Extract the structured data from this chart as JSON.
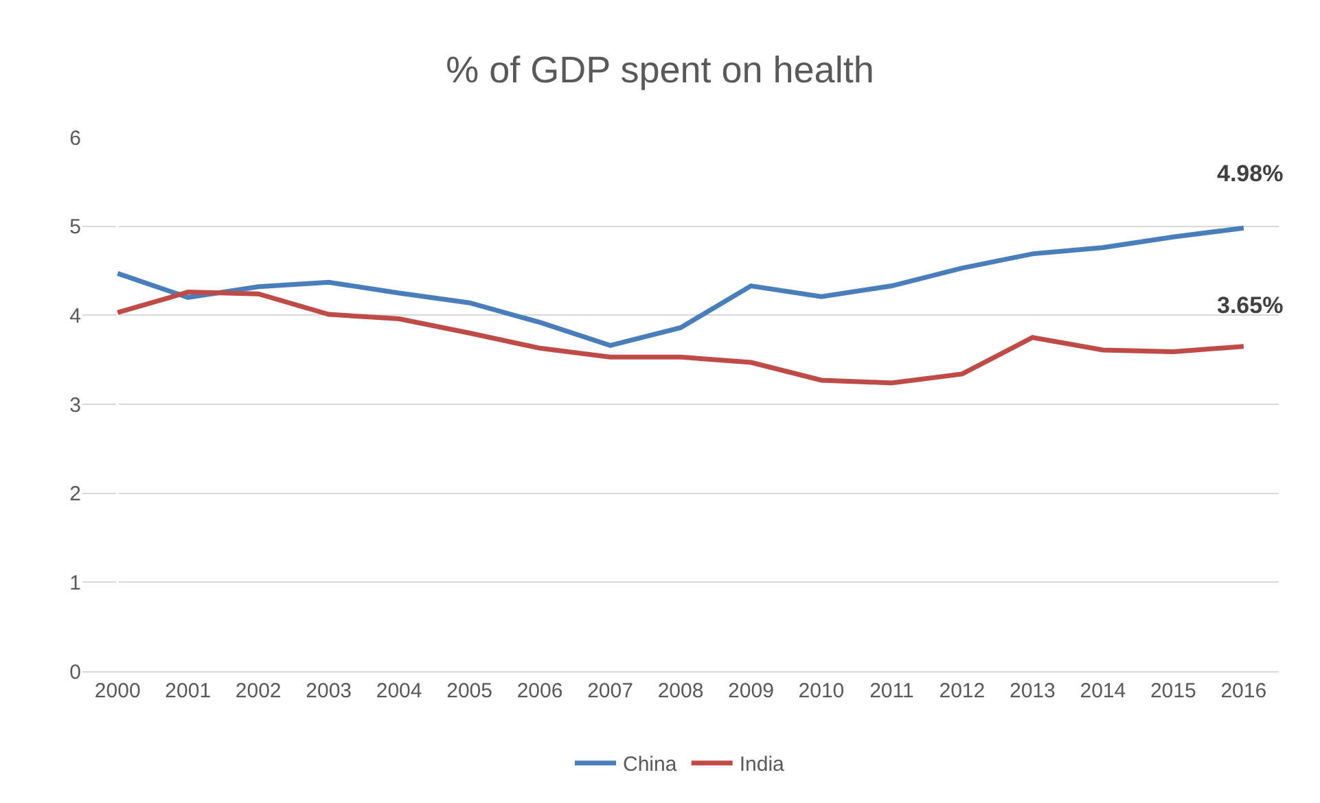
{
  "chart_data": {
    "type": "line",
    "title": "% of GDP spent on health",
    "categories": [
      "2000",
      "2001",
      "2002",
      "2003",
      "2004",
      "2005",
      "2006",
      "2007",
      "2008",
      "2009",
      "2010",
      "2011",
      "2012",
      "2013",
      "2014",
      "2015",
      "2016"
    ],
    "series": [
      {
        "name": "China",
        "color": "#4a7ebb",
        "values": [
          4.47,
          4.2,
          4.32,
          4.37,
          4.25,
          4.14,
          3.92,
          3.66,
          3.86,
          4.33,
          4.21,
          4.33,
          4.53,
          4.69,
          4.76,
          4.88,
          4.98
        ]
      },
      {
        "name": "India",
        "color": "#be4b48",
        "values": [
          4.03,
          4.26,
          4.24,
          4.01,
          3.96,
          3.8,
          3.63,
          3.53,
          3.53,
          3.47,
          3.27,
          3.24,
          3.34,
          3.75,
          3.61,
          3.59,
          3.65
        ]
      }
    ],
    "ylim": [
      0,
      6
    ],
    "yticks": [
      0,
      1,
      2,
      3,
      4,
      5,
      6
    ],
    "grid": "y",
    "legend": "bottom",
    "marker": "none",
    "line_style": "solid",
    "annotations": [
      {
        "text": "4.98%",
        "x": "2016",
        "y": 4.98
      },
      {
        "text": "3.65%",
        "x": "2016",
        "y": 3.65
      }
    ]
  }
}
